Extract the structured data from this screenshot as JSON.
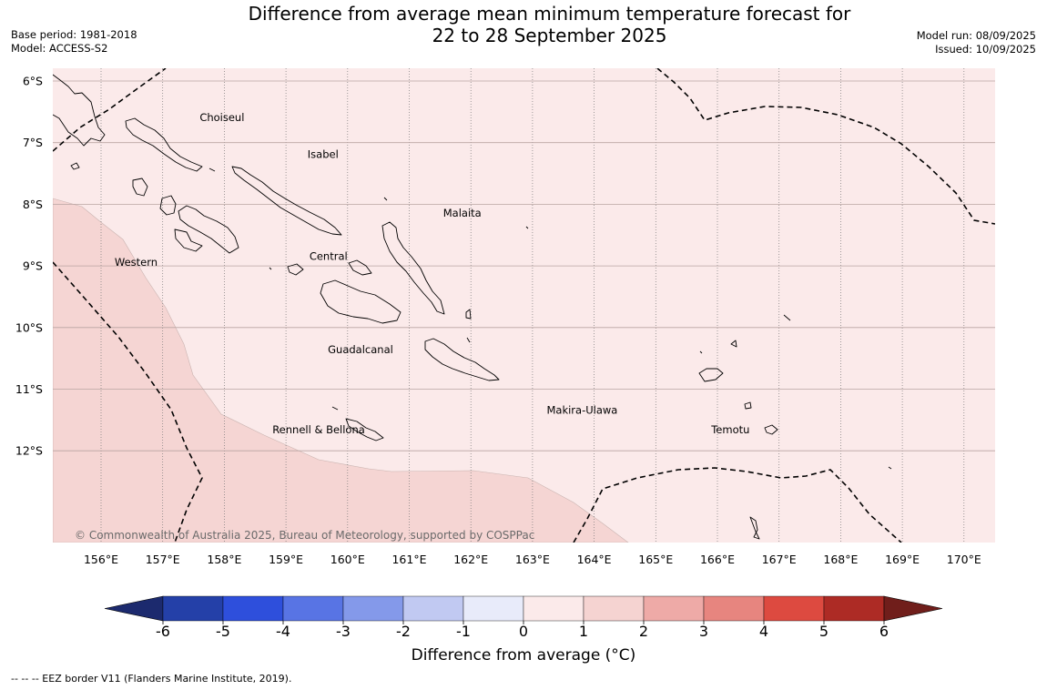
{
  "title_line1": "Difference from average mean minimum temperature forecast for",
  "title_line2": "22 to 28 September 2025",
  "base_period": "Base period: 1981-2018",
  "model": "Model: ACCESS-S2",
  "model_run": "Model run: 08/09/2025",
  "issued": "Issued: 10/09/2025",
  "copyright": "© Commonwealth of Australia 2025, Bureau of Meteorology, supported by COSPPac",
  "lat_labels": [
    "6°S",
    "7°S",
    "8°S",
    "9°S",
    "10°S",
    "11°S",
    "12°S"
  ],
  "lon_labels": [
    "156°E",
    "157°E",
    "158°E",
    "159°E",
    "160°E",
    "161°E",
    "162°E",
    "163°E",
    "164°E",
    "165°E",
    "166°E",
    "167°E",
    "168°E",
    "169°E",
    "170°E"
  ],
  "regions": [
    {
      "name": "Choiseul",
      "lon": 157.6,
      "lat": -6.65
    },
    {
      "name": "Isabel",
      "lon": 159.35,
      "lat": -7.25
    },
    {
      "name": "Malaita",
      "lon": 161.55,
      "lat": -8.2
    },
    {
      "name": "Central",
      "lon": 159.38,
      "lat": -8.9
    },
    {
      "name": "Western",
      "lon": 156.22,
      "lat": -9.0
    },
    {
      "name": "Guadalcanal",
      "lon": 159.68,
      "lat": -10.42
    },
    {
      "name": "Makira-Ulawa",
      "lon": 163.23,
      "lat": -11.4
    },
    {
      "name": "Rennell & Bellona",
      "lon": 158.78,
      "lat": -11.72
    },
    {
      "name": "Temotu",
      "lon": 165.9,
      "lat": -11.72
    }
  ],
  "colorbar": {
    "label": "Difference from average (°C)",
    "ticks": [
      "-6",
      "-5",
      "-4",
      "-3",
      "-2",
      "-1",
      "0",
      "1",
      "2",
      "3",
      "4",
      "5",
      "6"
    ],
    "colors": [
      "#2440a8",
      "#2e4fdc",
      "#5874e4",
      "#8499ea",
      "#c1c9f2",
      "#e8ebfa",
      "#fbeaea",
      "#f5d3d1",
      "#eeaaa7",
      "#e7857f",
      "#dd4a40",
      "#ad2b25"
    ],
    "under_color": "#1c2a6e",
    "over_color": "#701e1b"
  },
  "anomaly_colors": {
    "zero_to_one": "#fbeaea",
    "one_to_two": "#f5d5d3"
  },
  "eez_note": "--  --  -- EEZ border V11 (Flanders Marine Institute, 2019)."
}
